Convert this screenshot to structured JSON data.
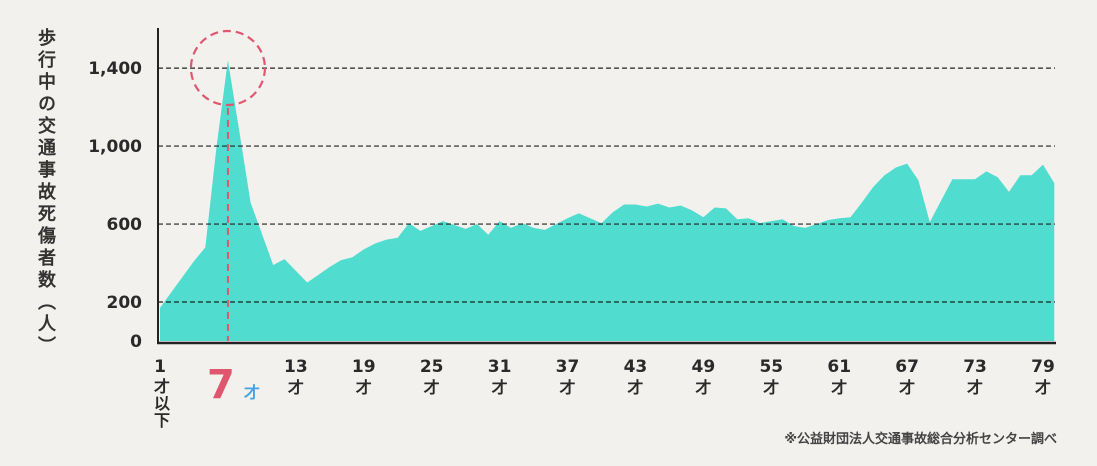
{
  "chart_data": {
    "type": "area",
    "title": "",
    "ylabel": "歩行中の交通事故死傷者数（人）",
    "xlabel": "",
    "ylim": [
      0,
      1600
    ],
    "yticks": [
      0,
      200,
      600,
      1000,
      1400
    ],
    "ytick_labels": [
      "0",
      "200",
      "600",
      "1,000",
      "1,400"
    ],
    "xticks": [
      1,
      7,
      13,
      19,
      25,
      31,
      37,
      43,
      49,
      55,
      61,
      67,
      73,
      79
    ],
    "xtick_labels": [
      "1",
      "7",
      "13",
      "19",
      "25",
      "31",
      "37",
      "43",
      "49",
      "55",
      "61",
      "67",
      "73",
      "79"
    ],
    "xtick_unit": "才",
    "first_tick_suffix": "才以下",
    "grid": "horizontal-dashed",
    "highlight": {
      "age": 7,
      "label": "7",
      "unit": "才"
    },
    "fill_color": "#50dccf",
    "highlight_color": "#e0566e",
    "highlight_unit_color": "#4aa3e0",
    "x": [
      1,
      2,
      3,
      4,
      5,
      6,
      7,
      8,
      9,
      10,
      11,
      12,
      13,
      14,
      15,
      16,
      17,
      18,
      19,
      20,
      21,
      22,
      23,
      24,
      25,
      26,
      27,
      28,
      29,
      30,
      31,
      32,
      33,
      34,
      35,
      36,
      37,
      38,
      39,
      40,
      41,
      42,
      43,
      44,
      45,
      46,
      47,
      48,
      49,
      50,
      51,
      52,
      53,
      54,
      55,
      56,
      57,
      58,
      59,
      60,
      61,
      62,
      63,
      64,
      65,
      66,
      67,
      68,
      69,
      70,
      71,
      72,
      73,
      74,
      75,
      76,
      77,
      78,
      79,
      80
    ],
    "values": [
      170,
      250,
      330,
      410,
      480,
      1000,
      1440,
      1080,
      710,
      550,
      390,
      420,
      360,
      300,
      340,
      380,
      415,
      430,
      470,
      500,
      520,
      530,
      605,
      565,
      590,
      615,
      595,
      575,
      600,
      545,
      615,
      580,
      605,
      580,
      570,
      600,
      630,
      655,
      630,
      605,
      660,
      700,
      700,
      690,
      705,
      685,
      695,
      670,
      635,
      685,
      680,
      625,
      630,
      605,
      615,
      625,
      590,
      580,
      600,
      620,
      630,
      635,
      710,
      790,
      850,
      890,
      910,
      825,
      610,
      720,
      830,
      830,
      830,
      870,
      840,
      765,
      850,
      850,
      905,
      810
    ]
  },
  "footnote": "※公益財団法人交通事故総合分析センター調べ"
}
